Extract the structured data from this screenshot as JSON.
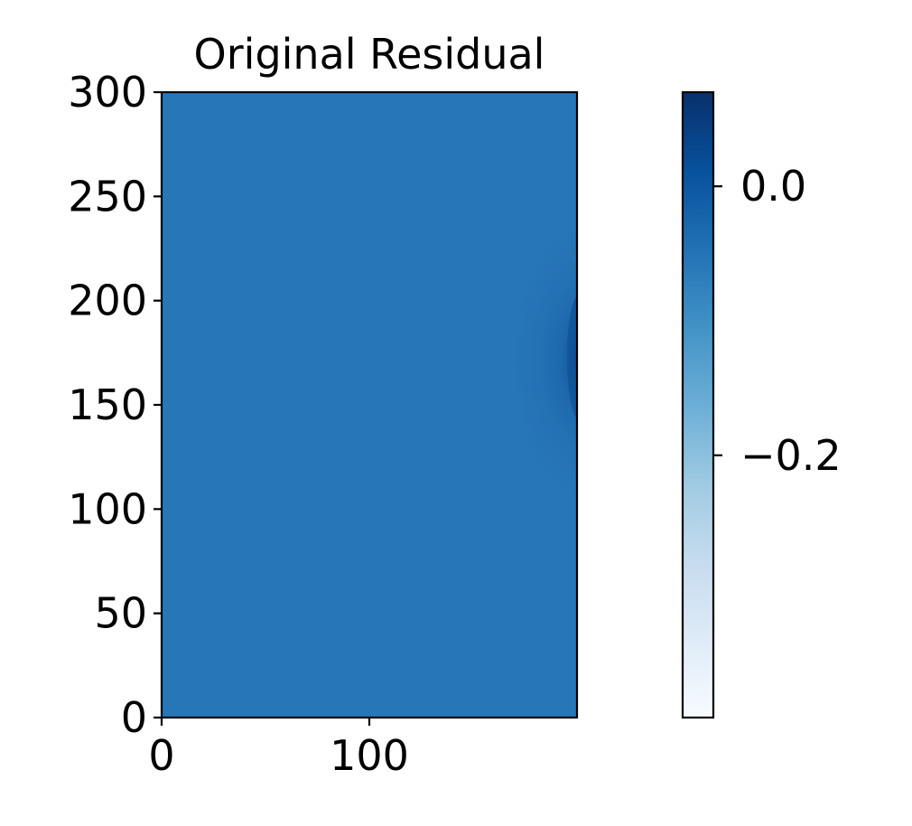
{
  "chart_data": {
    "type": "heatmap",
    "title": "Original Residual",
    "xlabel": "",
    "ylabel": "",
    "xlim": [
      0,
      200
    ],
    "ylim": [
      0,
      300
    ],
    "x_ticks": [
      0,
      100
    ],
    "x_tick_labels": [
      "0",
      "100"
    ],
    "y_ticks": [
      0,
      50,
      100,
      150,
      200,
      250,
      300
    ],
    "y_tick_labels": [
      "0",
      "50",
      "100",
      "150",
      "200",
      "250",
      "300"
    ],
    "colormap": "Blues",
    "colorbar": {
      "range": [
        -0.395,
        0.07
      ],
      "ticks": [
        0.0,
        -0.2
      ],
      "tick_labels": [
        "0.0",
        "−0.2"
      ],
      "colors": [
        "#f7fbff",
        "#deebf7",
        "#c6dbef",
        "#9ecae1",
        "#6baed6",
        "#4292c6",
        "#2171b5",
        "#08519c",
        "#08306b"
      ]
    },
    "field": {
      "background_value": 0.0,
      "background_color": "#2776b8",
      "feature": {
        "description_value_peak": 0.07,
        "x_center": 200,
        "y_center": 170,
        "peak_color": "#0b4a91"
      }
    },
    "grid": false,
    "legend": "none"
  }
}
